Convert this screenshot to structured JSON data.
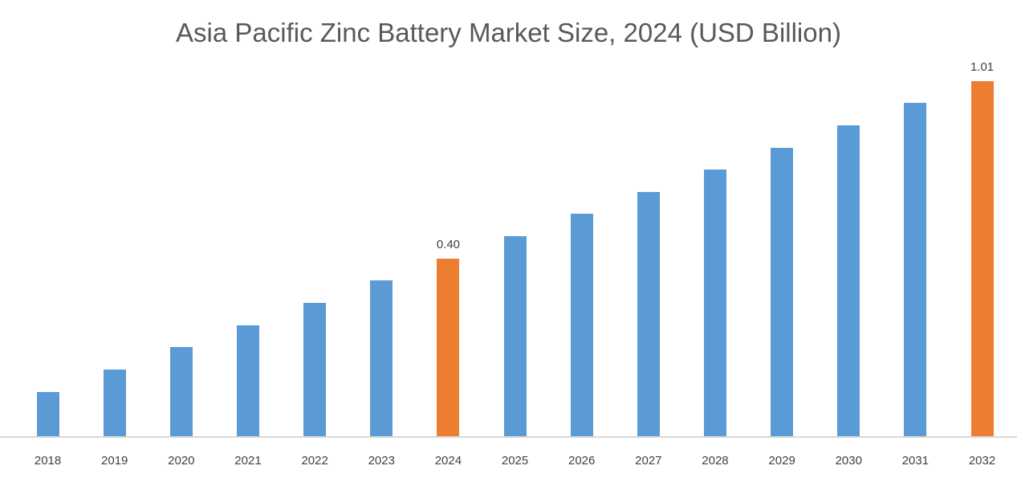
{
  "chart_data": {
    "type": "bar",
    "title": "Asia Pacific Zinc Battery Market Size, 2024 (USD Billion)",
    "xlabel": "",
    "ylabel": "",
    "categories": [
      "2018",
      "2019",
      "2020",
      "2021",
      "2022",
      "2023",
      "2024",
      "2025",
      "2026",
      "2027",
      "2028",
      "2029",
      "2030",
      "2031",
      "2032"
    ],
    "values": [
      0.1,
      0.15,
      0.2,
      0.25,
      0.3,
      0.35,
      0.4,
      0.45,
      0.5,
      0.55,
      0.6,
      0.65,
      0.7,
      0.75,
      1.01
    ],
    "displayed_bar_heights_units": [
      0.1,
      0.15,
      0.2,
      0.25,
      0.3,
      0.35,
      0.4,
      0.45,
      0.5,
      0.55,
      0.6,
      0.65,
      0.7,
      0.75,
      0.8
    ],
    "data_labels": [
      "",
      "",
      "",
      "",
      "",
      "",
      "0.40",
      "",
      "",
      "",
      "",
      "",
      "",
      "",
      "1.01"
    ],
    "highlighted_categories": [
      "2024",
      "2032"
    ],
    "highlight_indices": [
      6,
      14
    ],
    "bar_color_default": "#5B9BD5",
    "bar_color_highlight": "#ED7D31",
    "title_color": "#595959",
    "axis_label_color": "#404040",
    "baseline_color": "#D9D9D9",
    "ylim": [
      0,
      0.85
    ],
    "grid": "off",
    "legend": "none"
  }
}
